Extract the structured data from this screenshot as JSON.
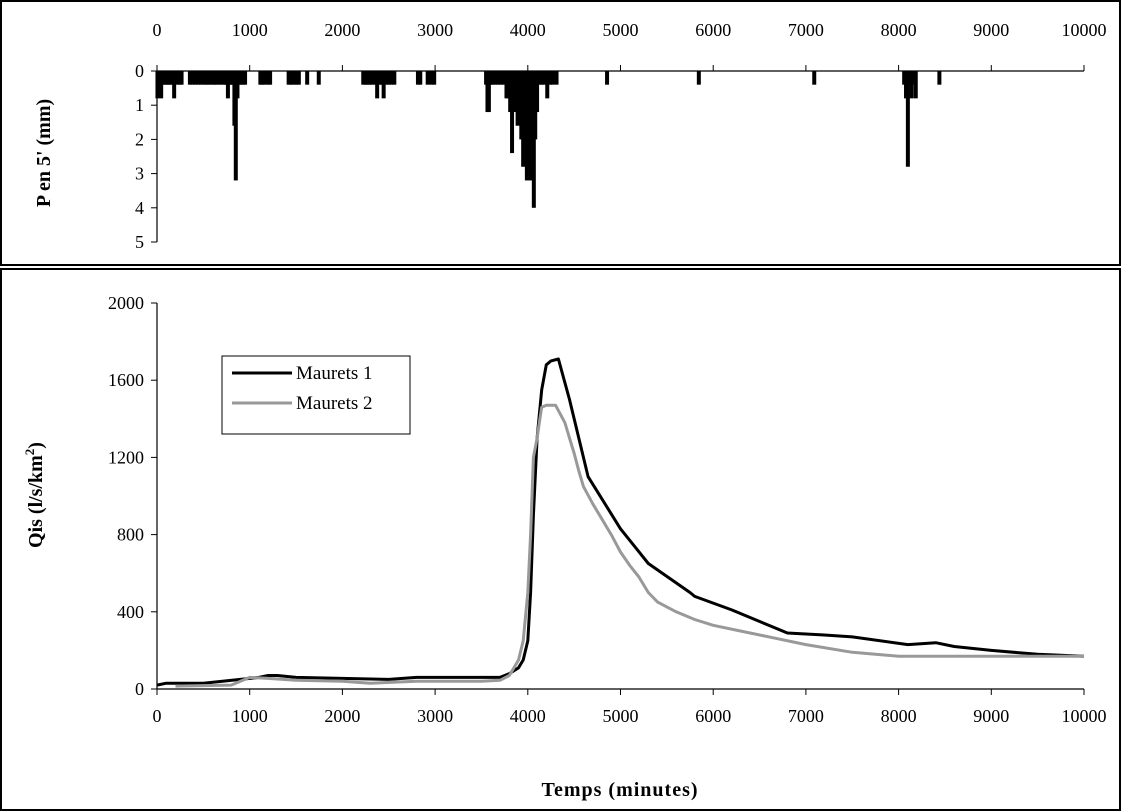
{
  "chart_data": [
    {
      "type": "bar",
      "title": "",
      "xlabel": "",
      "ylabel": "P en 5' (mm)",
      "xlim": [
        0,
        10000
      ],
      "ylim": [
        0,
        5
      ],
      "y_inverted": true,
      "x_axis_position": "top",
      "xticks": [
        0,
        1000,
        2000,
        3000,
        4000,
        5000,
        6000,
        7000,
        8000,
        9000,
        10000
      ],
      "yticks": [
        0,
        1,
        2,
        3,
        4,
        5
      ],
      "bar_color": "#000000",
      "bars": [
        [
          5,
          0.8
        ],
        [
          25,
          0.4
        ],
        [
          45,
          0.8
        ],
        [
          65,
          0.4
        ],
        [
          85,
          0.4
        ],
        [
          105,
          0.4
        ],
        [
          125,
          0.4
        ],
        [
          145,
          0.4
        ],
        [
          165,
          0.4
        ],
        [
          185,
          0.8
        ],
        [
          215,
          0.4
        ],
        [
          245,
          0.4
        ],
        [
          265,
          0.4
        ],
        [
          355,
          0.4
        ],
        [
          385,
          0.4
        ],
        [
          415,
          0.4
        ],
        [
          445,
          0.4
        ],
        [
          475,
          0.4
        ],
        [
          505,
          0.4
        ],
        [
          535,
          0.4
        ],
        [
          555,
          0.4
        ],
        [
          585,
          0.4
        ],
        [
          615,
          0.4
        ],
        [
          635,
          0.4
        ],
        [
          665,
          0.4
        ],
        [
          695,
          0.4
        ],
        [
          725,
          0.4
        ],
        [
          745,
          0.4
        ],
        [
          765,
          0.8
        ],
        [
          780,
          0.4
        ],
        [
          800,
          0.4
        ],
        [
          820,
          0.4
        ],
        [
          835,
          1.6
        ],
        [
          850,
          3.2
        ],
        [
          868,
          0.8
        ],
        [
          885,
          0.4
        ],
        [
          900,
          0.4
        ],
        [
          930,
          0.4
        ],
        [
          950,
          0.4
        ],
        [
          1115,
          0.4
        ],
        [
          1135,
          0.4
        ],
        [
          1160,
          0.4
        ],
        [
          1195,
          0.4
        ],
        [
          1220,
          0.4
        ],
        [
          1420,
          0.4
        ],
        [
          1445,
          0.4
        ],
        [
          1470,
          0.4
        ],
        [
          1500,
          0.4
        ],
        [
          1530,
          0.4
        ],
        [
          1620,
          0.4
        ],
        [
          1745,
          0.4
        ],
        [
          2225,
          0.4
        ],
        [
          2250,
          0.4
        ],
        [
          2270,
          0.4
        ],
        [
          2295,
          0.4
        ],
        [
          2320,
          0.4
        ],
        [
          2350,
          0.4
        ],
        [
          2375,
          0.8
        ],
        [
          2400,
          0.4
        ],
        [
          2425,
          0.4
        ],
        [
          2445,
          0.8
        ],
        [
          2475,
          0.4
        ],
        [
          2500,
          0.4
        ],
        [
          2530,
          0.4
        ],
        [
          2560,
          0.4
        ],
        [
          2815,
          0.4
        ],
        [
          2840,
          0.4
        ],
        [
          2920,
          0.4
        ],
        [
          2960,
          0.4
        ],
        [
          2990,
          0.4
        ],
        [
          3550,
          0.4
        ],
        [
          3565,
          1.2
        ],
        [
          3580,
          1.2
        ],
        [
          3600,
          0.4
        ],
        [
          3620,
          0.4
        ],
        [
          3650,
          0.4
        ],
        [
          3680,
          0.4
        ],
        [
          3710,
          0.4
        ],
        [
          3740,
          0.4
        ],
        [
          3770,
          0.8
        ],
        [
          3790,
          0.8
        ],
        [
          3810,
          1.2
        ],
        [
          3830,
          2.4
        ],
        [
          3850,
          0.8
        ],
        [
          3870,
          1.2
        ],
        [
          3890,
          1.6
        ],
        [
          3910,
          1.2
        ],
        [
          3930,
          2.0
        ],
        [
          3950,
          2.8
        ],
        [
          3970,
          2.4
        ],
        [
          3990,
          3.2
        ],
        [
          4010,
          2.8
        ],
        [
          4030,
          3.2
        ],
        [
          4050,
          2.4
        ],
        [
          4065,
          4.0
        ],
        [
          4080,
          2.0
        ],
        [
          4100,
          1.2
        ],
        [
          4125,
          0.4
        ],
        [
          4150,
          0.4
        ],
        [
          4175,
          0.4
        ],
        [
          4210,
          0.8
        ],
        [
          4240,
          0.4
        ],
        [
          4270,
          0.4
        ],
        [
          4310,
          0.4
        ],
        [
          4855,
          0.4
        ],
        [
          5845,
          0.4
        ],
        [
          7090,
          0.4
        ],
        [
          8060,
          0.4
        ],
        [
          8080,
          0.8
        ],
        [
          8100,
          2.8
        ],
        [
          8120,
          0.4
        ],
        [
          8140,
          0.8
        ],
        [
          8165,
          0.4
        ],
        [
          8185,
          0.8
        ],
        [
          8440,
          0.4
        ]
      ]
    },
    {
      "type": "line",
      "title": "",
      "xlabel": "Temps (minutes)",
      "ylabel_main": "Qis (l/s/km",
      "ylabel_sup": "2",
      "ylabel_close": ")",
      "xlim": [
        0,
        10000
      ],
      "ylim": [
        0,
        2000
      ],
      "xticks": [
        0,
        1000,
        2000,
        3000,
        4000,
        5000,
        6000,
        7000,
        8000,
        9000,
        10000
      ],
      "yticks": [
        0,
        400,
        800,
        1200,
        1600,
        2000
      ],
      "legend_position": "upper-left",
      "series": [
        {
          "name": "Maurets 1",
          "color": "#000000",
          "x": [
            0,
            100,
            500,
            900,
            1100,
            1200,
            1300,
            1500,
            2000,
            2500,
            2800,
            3200,
            3700,
            3800,
            3900,
            3950,
            4000,
            4030,
            4060,
            4100,
            4150,
            4200,
            4250,
            4330,
            4450,
            4650,
            5000,
            5300,
            5750,
            5800,
            6200,
            6800,
            7200,
            7500,
            8100,
            8400,
            8600,
            9000,
            9500,
            10000
          ],
          "y": [
            20,
            30,
            30,
            50,
            60,
            70,
            70,
            60,
            55,
            50,
            60,
            60,
            60,
            80,
            110,
            150,
            250,
            500,
            900,
            1300,
            1550,
            1680,
            1700,
            1710,
            1500,
            1100,
            830,
            650,
            500,
            480,
            410,
            290,
            280,
            270,
            230,
            240,
            220,
            200,
            180,
            170
          ]
        },
        {
          "name": "Maurets 2",
          "color": "#999999",
          "x": [
            200,
            800,
            1000,
            1200,
            1500,
            2000,
            2300,
            2800,
            3500,
            3700,
            3800,
            3850,
            3900,
            3950,
            4000,
            4030,
            4060,
            4100,
            4130,
            4150,
            4200,
            4300,
            4400,
            4450,
            4500,
            4550,
            4600,
            4700,
            4800,
            4900,
            5000,
            5100,
            5200,
            5300,
            5400,
            5600,
            5800,
            6000,
            6300,
            6700,
            7000,
            7500,
            8000,
            9000,
            10000
          ],
          "y": [
            15,
            20,
            60,
            55,
            45,
            40,
            30,
            40,
            40,
            45,
            70,
            110,
            150,
            250,
            500,
            800,
            1200,
            1300,
            1400,
            1460,
            1470,
            1470,
            1380,
            1300,
            1220,
            1130,
            1050,
            960,
            880,
            800,
            710,
            640,
            580,
            500,
            450,
            400,
            360,
            330,
            300,
            260,
            230,
            190,
            170,
            170,
            170
          ]
        }
      ]
    }
  ]
}
